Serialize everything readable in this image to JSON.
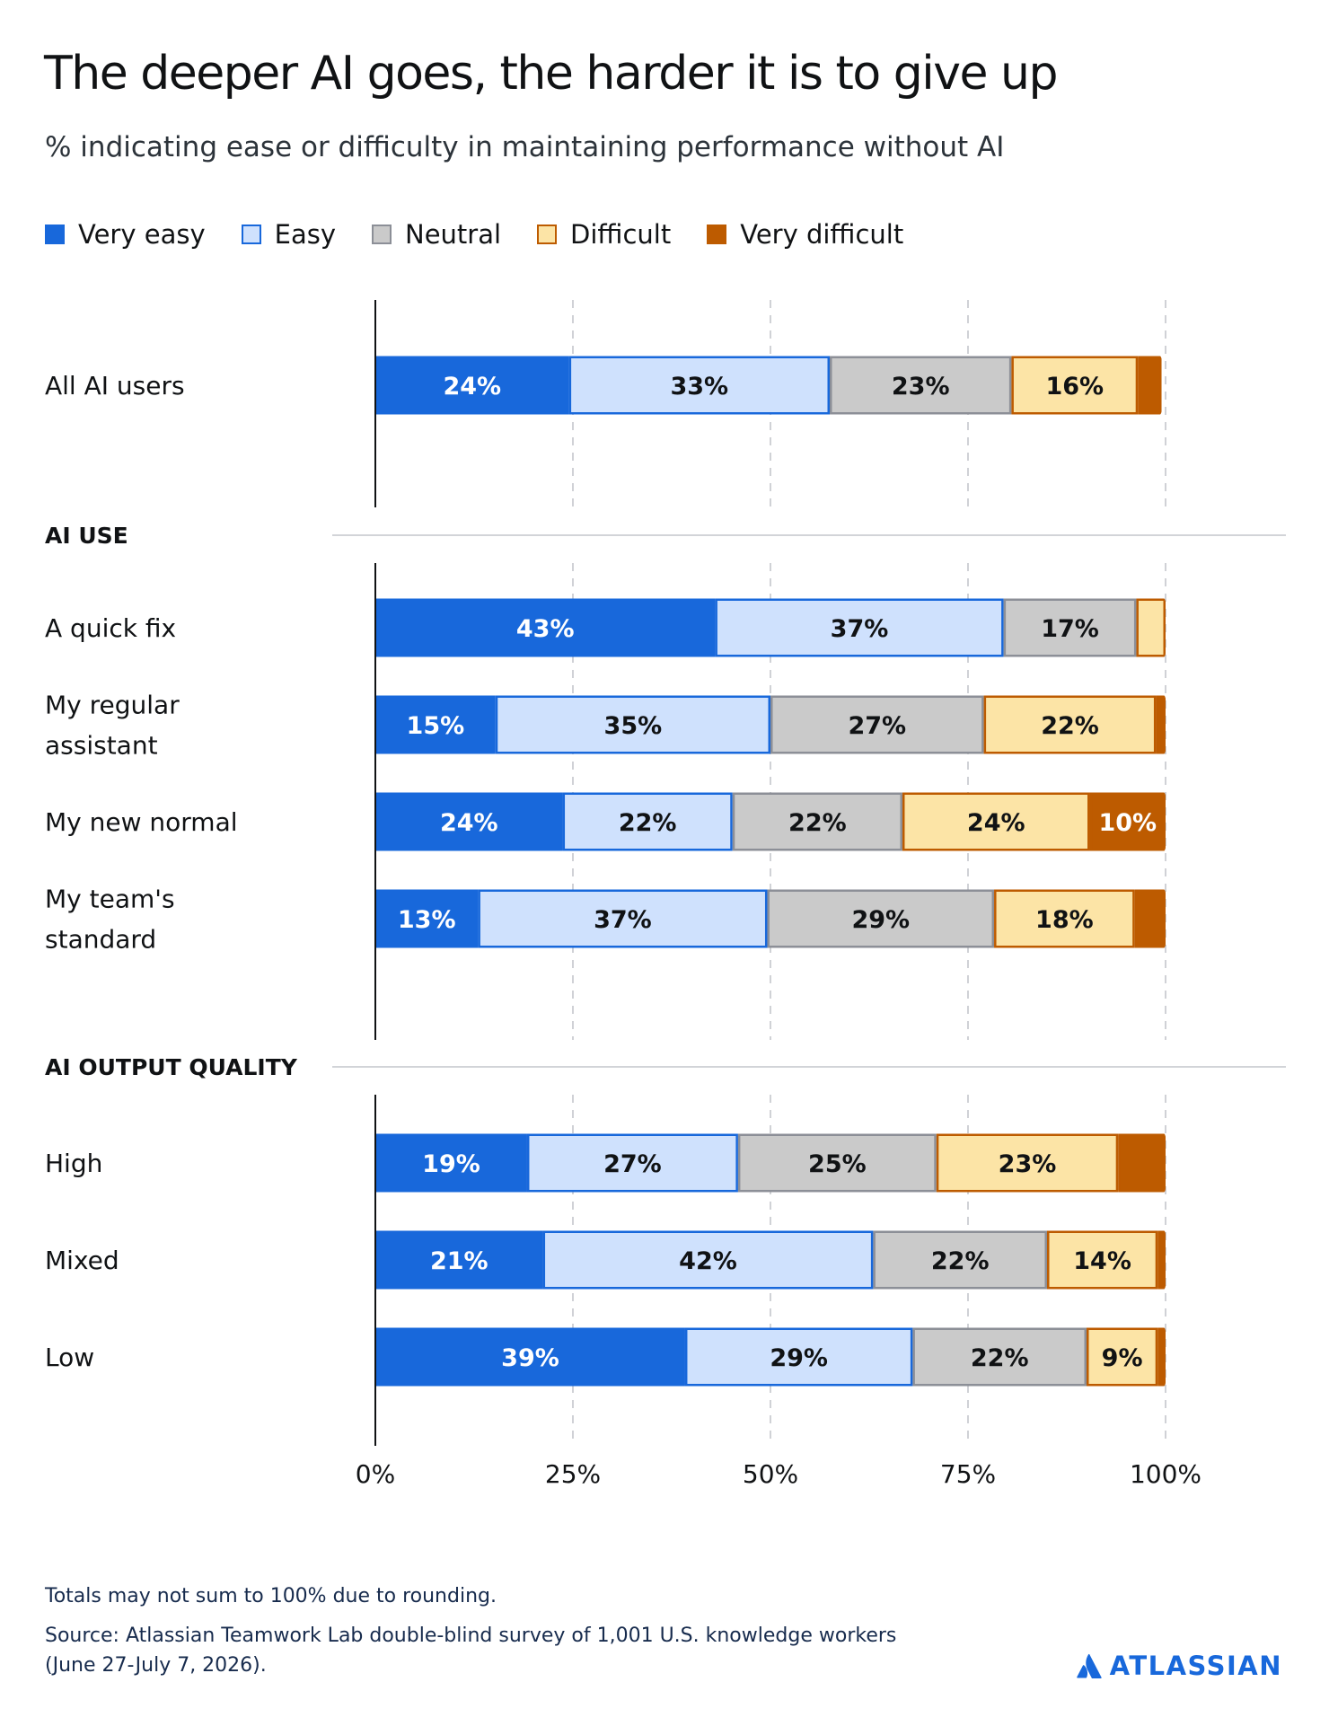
{
  "title": "The deeper AI goes, the harder it is to give up",
  "subtitle": "% indicating ease or difficulty in maintaining performance without AI",
  "footnote": "Totals may not sum to 100% due to rounding.",
  "source": "Source: Atlassian Teamwork Lab double-blind survey of 1,001 U.S. knowledge workers (June 27-July 7, 2026).",
  "brand": {
    "name": "ATLASSIAN",
    "icon": "atlassian-logo-icon",
    "color": "#1868db"
  },
  "chart_data": {
    "type": "bar",
    "orientation": "horizontal",
    "stacked": true,
    "xlim": [
      0,
      100
    ],
    "x_ticks": [
      0,
      25,
      50,
      75,
      100
    ],
    "x_tick_labels": [
      "0%",
      "25%",
      "50%",
      "75%",
      "100%"
    ],
    "grid": true,
    "legend_position": "top-left",
    "series": [
      {
        "name": "Very easy",
        "fill": "#1868db",
        "stroke": "#1868db",
        "text_color": "#ffffff"
      },
      {
        "name": "Easy",
        "fill": "#cfe1fd",
        "stroke": "#1868db",
        "text_color": "#101214"
      },
      {
        "name": "Neutral",
        "fill": "#cacaca",
        "stroke": "#8c8f97",
        "text_color": "#101214"
      },
      {
        "name": "Difficult",
        "fill": "#fce4a6",
        "stroke": "#bd5b00",
        "text_color": "#101214"
      },
      {
        "name": "Very difficult",
        "fill": "#bd5b00",
        "stroke": "#bd5b00",
        "text_color": "#ffffff"
      }
    ],
    "groups": [
      {
        "label": "",
        "rows": [
          {
            "label": [
              "All AI users"
            ],
            "values": [
              24.5,
              33,
              23,
              16,
              3
            ],
            "labels": [
              "24%",
              "33%",
              "23%",
              "16%",
              ""
            ]
          }
        ]
      },
      {
        "label": "AI USE",
        "rows": [
          {
            "label": [
              "A quick fix"
            ],
            "values": [
              43,
              36.5,
              16.8,
              3.7,
              0
            ],
            "labels": [
              "43%",
              "37%",
              "17%",
              "",
              ""
            ]
          },
          {
            "label": [
              "My regular",
              "assistant"
            ],
            "values": [
              15.2,
              34.8,
              27,
              21.8,
              1.2
            ],
            "labels": [
              "15%",
              "35%",
              "27%",
              "22%",
              ""
            ]
          },
          {
            "label": [
              "My new normal"
            ],
            "values": [
              23.7,
              21.5,
              21.5,
              23.7,
              9.6
            ],
            "labels": [
              "24%",
              "22%",
              "22%",
              "24%",
              "10%"
            ]
          },
          {
            "label": [
              "My team's",
              "standard"
            ],
            "values": [
              13,
              36.6,
              28.7,
              17.8,
              3.9
            ],
            "labels": [
              "13%",
              "37%",
              "29%",
              "18%",
              ""
            ]
          }
        ]
      },
      {
        "label": "AI OUTPUT QUALITY",
        "rows": [
          {
            "label": [
              "High"
            ],
            "values": [
              19.2,
              26.7,
              25.1,
              23,
              6
            ],
            "labels": [
              "19%",
              "27%",
              "25%",
              "23%",
              ""
            ]
          },
          {
            "label": [
              "Mixed"
            ],
            "values": [
              21.2,
              41.8,
              22,
              14,
              1
            ],
            "labels": [
              "21%",
              "42%",
              "22%",
              "14%",
              ""
            ]
          },
          {
            "label": [
              "Low"
            ],
            "values": [
              39.2,
              28.8,
              22,
              9,
              1
            ],
            "labels": [
              "39%",
              "29%",
              "22%",
              "9%",
              ""
            ]
          }
        ]
      }
    ]
  }
}
